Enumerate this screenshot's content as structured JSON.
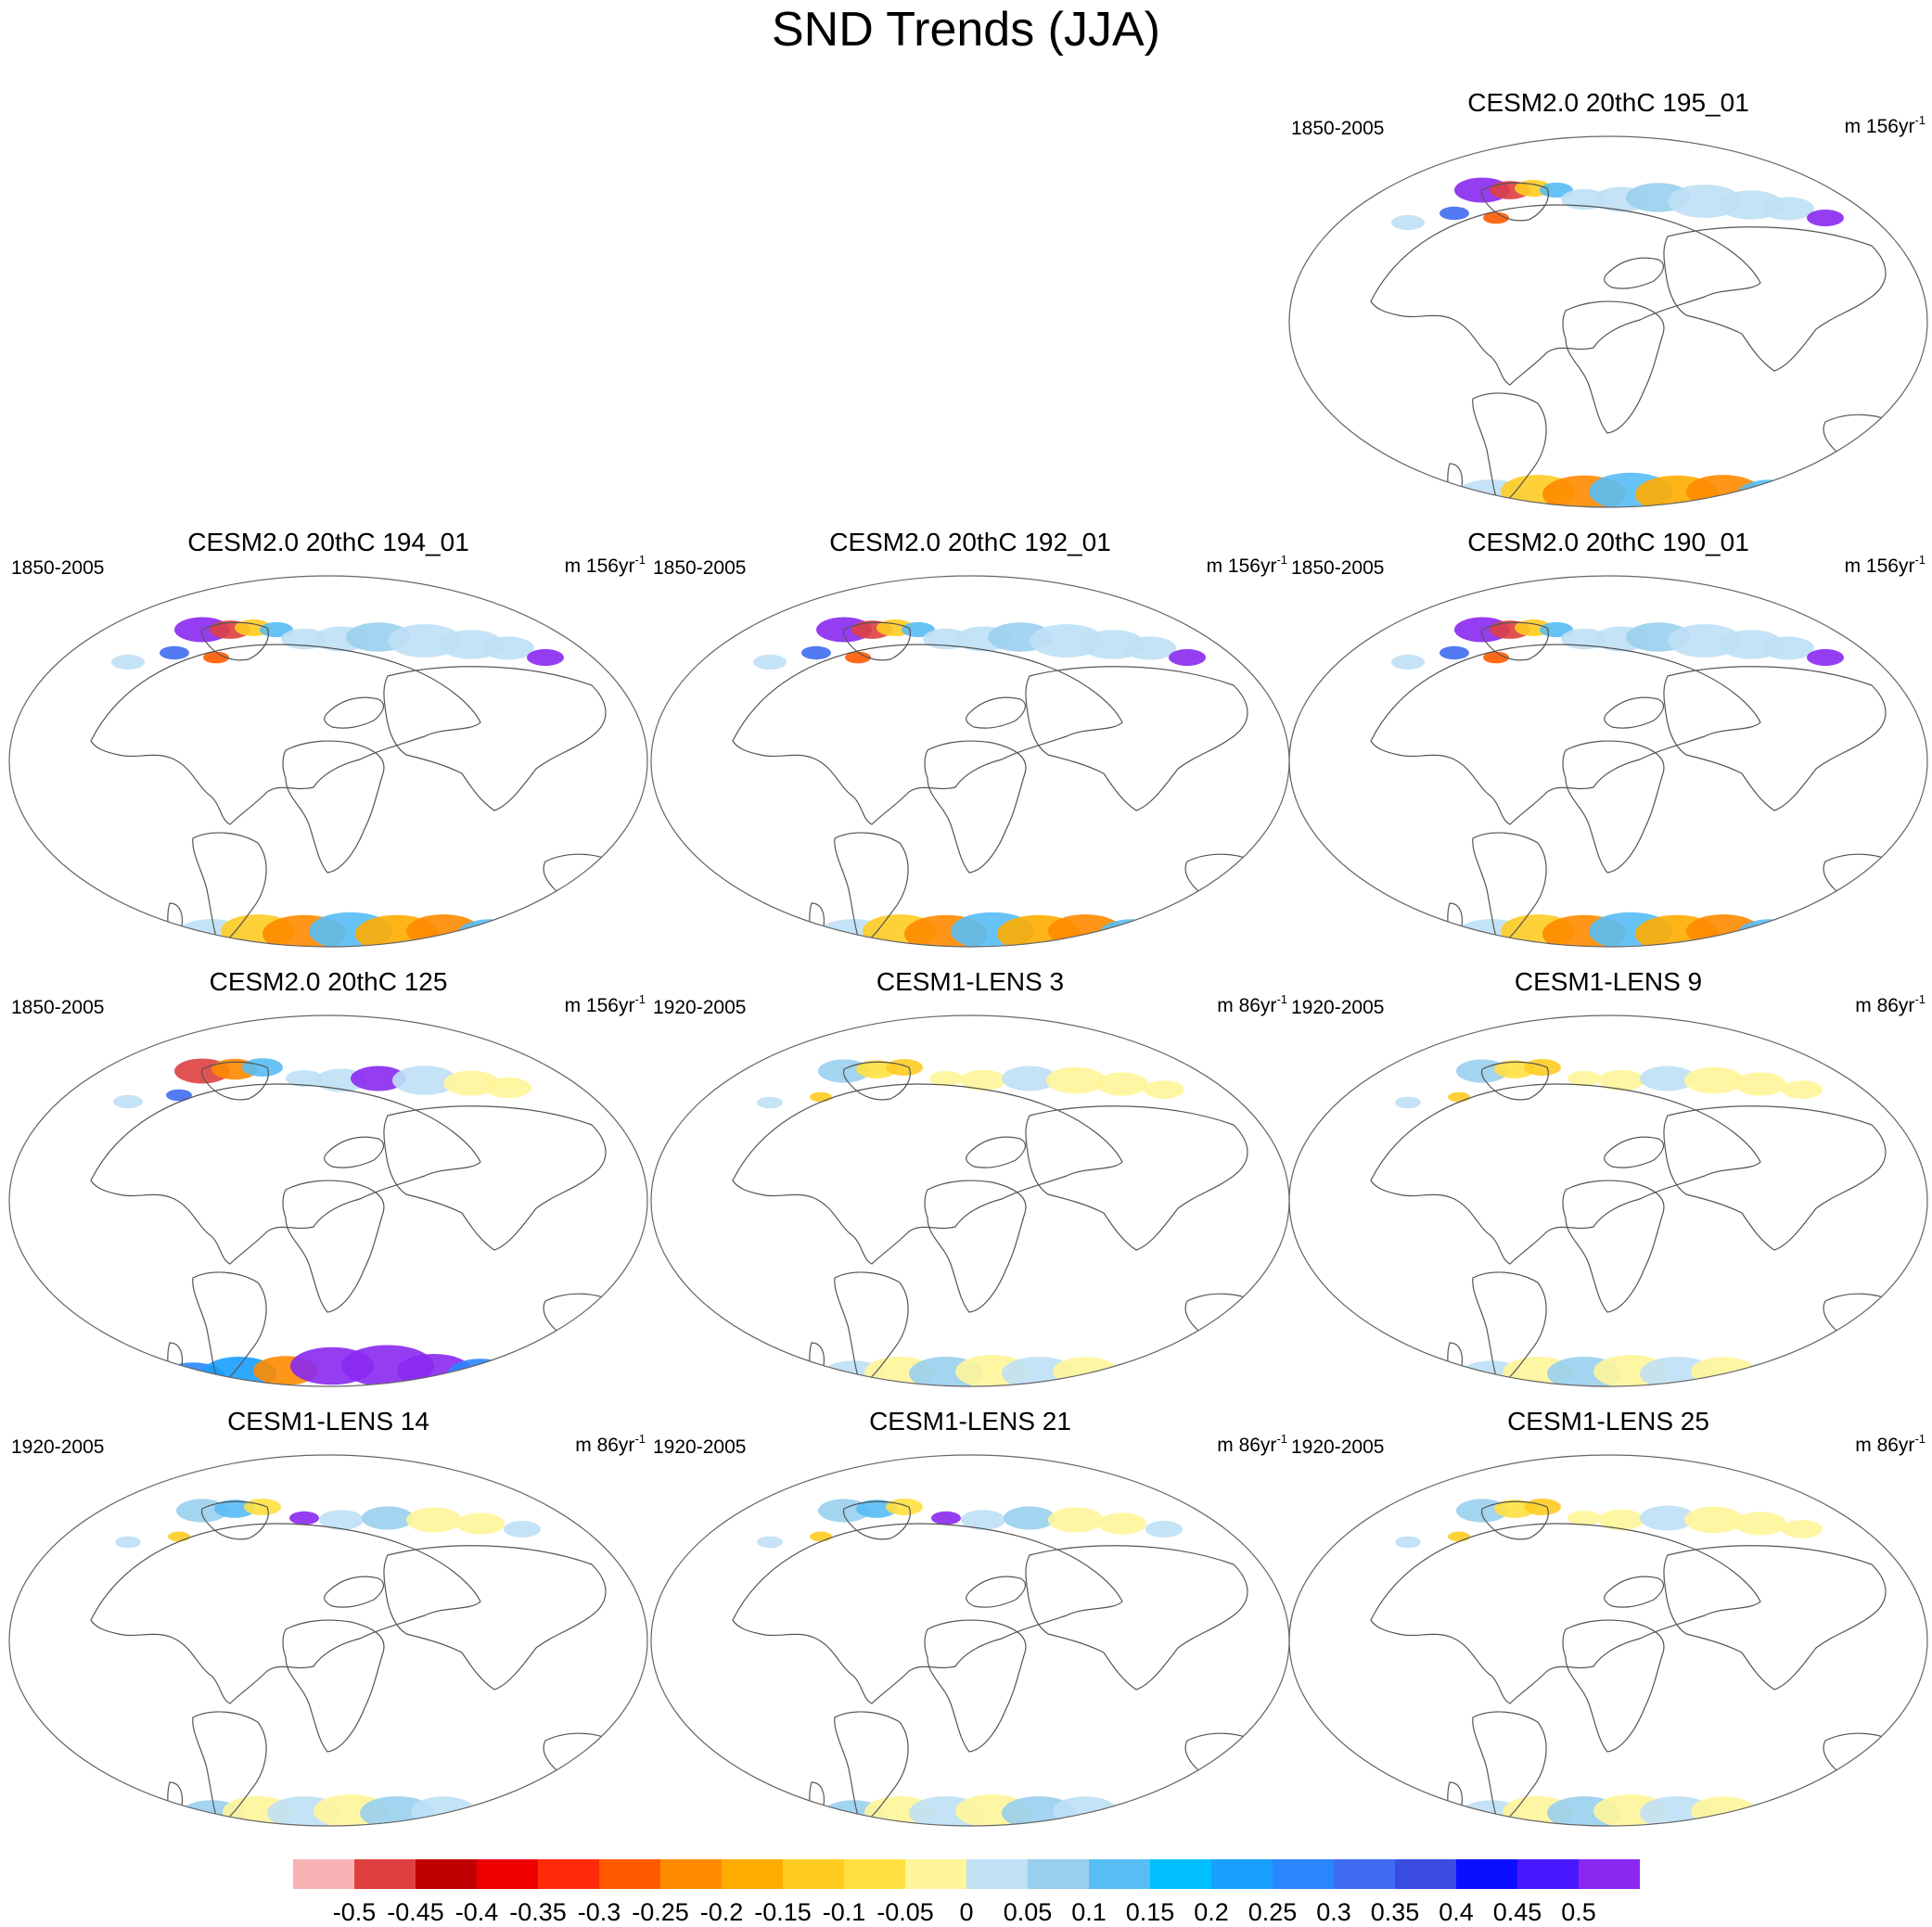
{
  "title": "SND Trends (JJA)",
  "panels": [
    {
      "title": "CESM2.0 20thC 195_01",
      "period": "1850-2005",
      "units": "m 156yr",
      "units_exp": "-1",
      "pattern": "blue_warm"
    },
    {
      "title": "CESM2.0 20thC 194_01",
      "period": "1850-2005",
      "units": "m 156yr",
      "units_exp": "-1",
      "pattern": "blue_warm"
    },
    {
      "title": "CESM2.0 20thC 192_01",
      "period": "1850-2005",
      "units": "m 156yr",
      "units_exp": "-1",
      "pattern": "blue_warm"
    },
    {
      "title": "CESM2.0 20thC 190_01",
      "period": "1850-2005",
      "units": "m 156yr",
      "units_exp": "-1",
      "pattern": "blue_warm"
    },
    {
      "title": "CESM2.0 20thC 125",
      "period": "1850-2005",
      "units": "m 156yr",
      "units_exp": "-1",
      "pattern": "purple"
    },
    {
      "title": "CESM1-LENS 3",
      "period": "1920-2005",
      "units": "m 86yr",
      "units_exp": "-1",
      "pattern": "yellow"
    },
    {
      "title": "CESM1-LENS 9",
      "period": "1920-2005",
      "units": "m 86yr",
      "units_exp": "-1",
      "pattern": "yellow"
    },
    {
      "title": "CESM1-LENS 14",
      "period": "1920-2005",
      "units": "m 86yr",
      "units_exp": "-1",
      "pattern": "light"
    },
    {
      "title": "CESM1-LENS 21",
      "period": "1920-2005",
      "units": "m 86yr",
      "units_exp": "-1",
      "pattern": "light"
    },
    {
      "title": "CESM1-LENS 25",
      "period": "1920-2005",
      "units": "m 86yr",
      "units_exp": "-1",
      "pattern": "yellow"
    }
  ],
  "colorbar": {
    "colors": [
      "#f7b3b5",
      "#de4040",
      "#c00000",
      "#ee0000",
      "#ff2a0a",
      "#ff5a00",
      "#ff8a00",
      "#ffac00",
      "#ffcc22",
      "#ffe040",
      "#fff59a",
      "#bfe0f5",
      "#99cfee",
      "#57bdf5",
      "#00c0ff",
      "#18a0ff",
      "#2b85ff",
      "#3f6cf0",
      "#3a4ce0",
      "#0a10ff",
      "#4a18ff",
      "#8a28f0"
    ],
    "labels": [
      "-0.5",
      "-0.45",
      "-0.4",
      "-0.35",
      "-0.3",
      "-0.25",
      "-0.2",
      "-0.15",
      "-0.1",
      "-0.05",
      "0",
      "0.05",
      "0.1",
      "0.15",
      "0.2",
      "0.25",
      "0.3",
      "0.35",
      "0.4",
      "0.45",
      "0.5"
    ]
  }
}
